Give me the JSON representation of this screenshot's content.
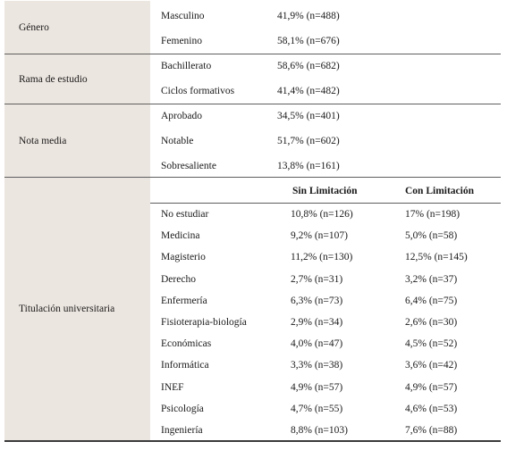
{
  "sections": [
    {
      "label": "Género",
      "rows": [
        {
          "category": "Masculino",
          "value": "41,9% (n=488)"
        },
        {
          "category": "Femenino",
          "value": "58,1% (n=676)"
        }
      ]
    },
    {
      "label": "Rama de estudio",
      "rows": [
        {
          "category": "Bachillerato",
          "value": "58,6% (n=682)"
        },
        {
          "category": "Ciclos formativos",
          "value": "41,4% (n=482)"
        }
      ]
    },
    {
      "label": "Nota media",
      "rows": [
        {
          "category": "Aprobado",
          "value": "34,5% (n=401)"
        },
        {
          "category": "Notable",
          "value": "51,7% (n=602)"
        },
        {
          "category": "Sobresaliente",
          "value": "13,8% (n=161)"
        }
      ]
    },
    {
      "label": "Titulación universitaria",
      "headers": [
        "Sin Limitación",
        "Con Limitación"
      ],
      "rows": [
        {
          "category": "No estudiar",
          "sin": "10,8% (n=126)",
          "con": "17% (n=198)"
        },
        {
          "category": "Medicina",
          "sin": "9,2% (n=107)",
          "con": "5,0% (n=58)"
        },
        {
          "category": "Magisterio",
          "sin": "11,2% (n=130)",
          "con": "12,5% (n=145)"
        },
        {
          "category": "Derecho",
          "sin": "2,7% (n=31)",
          "con": "3,2% (n=37)"
        },
        {
          "category": "Enfermería",
          "sin": "6,3% (n=73)",
          "con": "6,4% (n=75)"
        },
        {
          "category": "Fisioterapia-biología",
          "sin": "2,9% (n=34)",
          "con": "2,6% (n=30)"
        },
        {
          "category": "Económicas",
          "sin": "4,0% (n=47)",
          "con": "4,5% (n=52)"
        },
        {
          "category": "Informática",
          "sin": "3,3%  (n=38)",
          "con": "3,6% (n=42)"
        },
        {
          "category": "INEF",
          "sin": "4,9% (n=57)",
          "con": "4,9% (n=57)"
        },
        {
          "category": "Psicología",
          "sin": "4,7% (n=55)",
          "con": "4,6% (n=53)"
        },
        {
          "category": "Ingeniería",
          "sin": "8,8% (n=103)",
          "con": "7,6% (n=88)"
        }
      ]
    }
  ]
}
